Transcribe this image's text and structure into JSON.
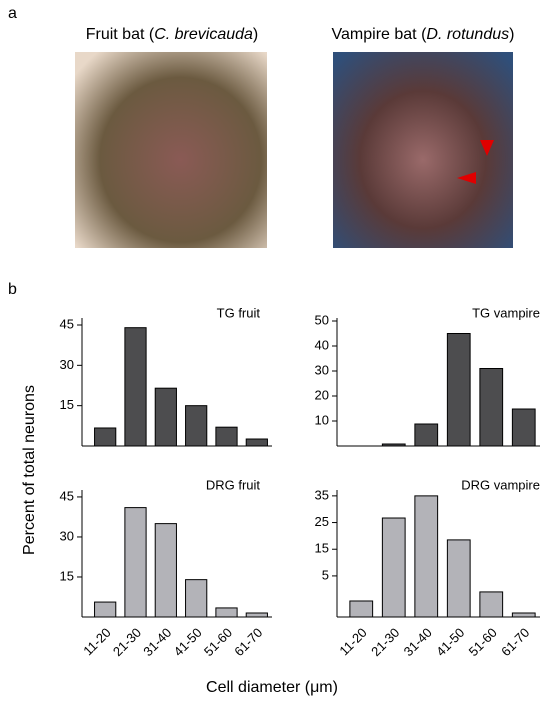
{
  "panel_labels": [
    "a",
    "b"
  ],
  "photos": [
    {
      "caption": [
        "Fruit bat (",
        "C. brevicauda",
        ")"
      ]
    },
    {
      "caption": [
        "Vampire bat (",
        "D. rotundus",
        ")"
      ]
    }
  ],
  "y_label": "Percent  of total neurons",
  "x_label": "Cell diameter (μm)",
  "chart_data": [
    {
      "type": "bar",
      "title": "TG fruit",
      "color": "#4d4d4f",
      "values": [
        6.7,
        44,
        21.5,
        15,
        7,
        2.6
      ],
      "ylim": [
        0,
        47.6
      ],
      "yticks": [
        15,
        30,
        45
      ]
    },
    {
      "type": "bar",
      "title": "TG vampire",
      "color": "#4d4d4f",
      "values": [
        0,
        0.8,
        8.8,
        45,
        31,
        14.8
      ],
      "ylim": [
        0,
        51.2
      ],
      "yticks": [
        10,
        20,
        30,
        40,
        50
      ]
    },
    {
      "type": "bar",
      "title": "DRG fruit",
      "color": "#b3b3b8",
      "categories": [
        "11-20",
        "21-30",
        "31-40",
        "41-50",
        "51-60",
        "61-70"
      ],
      "values": [
        5.6,
        41,
        35,
        14,
        3.4,
        1.5
      ],
      "ylim": [
        0,
        47.6
      ],
      "yticks": [
        15,
        30,
        45
      ]
    },
    {
      "type": "bar",
      "title": "DRG vampire",
      "color": "#b3b3b8",
      "categories": [
        "11-20",
        "21-30",
        "31-40",
        "41-50",
        "51-60",
        "61-70"
      ],
      "values": [
        -4.4,
        26.7,
        35,
        18.5,
        -1,
        -8.9
      ],
      "ylim": [
        -10.4,
        37.2
      ],
      "yticks": [
        5,
        15,
        25,
        35
      ]
    }
  ]
}
